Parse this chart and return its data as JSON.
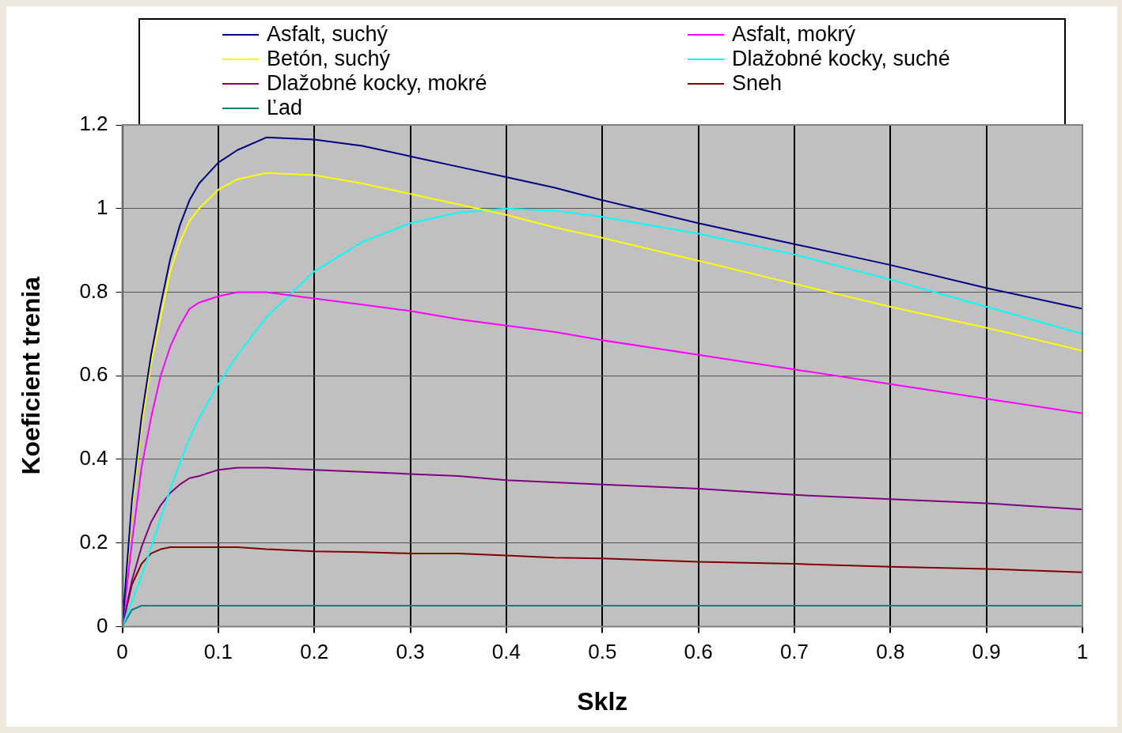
{
  "chart_data": {
    "type": "line",
    "xlabel": "Sklz",
    "ylabel": "Koeficient trenia",
    "x": [
      0,
      0.01,
      0.02,
      0.03,
      0.04,
      0.05,
      0.06,
      0.07,
      0.08,
      0.1,
      0.12,
      0.15,
      0.2,
      0.25,
      0.3,
      0.35,
      0.4,
      0.45,
      0.5,
      0.6,
      0.7,
      0.8,
      0.9,
      1.0
    ],
    "series": [
      {
        "name": "Asfalt, suchý",
        "color": "#000080",
        "values": [
          0,
          0.3,
          0.5,
          0.65,
          0.77,
          0.88,
          0.96,
          1.02,
          1.06,
          1.11,
          1.14,
          1.17,
          1.165,
          1.15,
          1.125,
          1.1,
          1.075,
          1.05,
          1.02,
          0.965,
          0.915,
          0.865,
          0.81,
          0.76
        ]
      },
      {
        "name": "Asfalt, mokrý",
        "color": "#ff00ff",
        "values": [
          0,
          0.2,
          0.38,
          0.5,
          0.6,
          0.67,
          0.72,
          0.76,
          0.775,
          0.79,
          0.8,
          0.8,
          0.785,
          0.77,
          0.755,
          0.735,
          0.72,
          0.705,
          0.685,
          0.65,
          0.615,
          0.58,
          0.545,
          0.51
        ]
      },
      {
        "name": "Betón, suchý",
        "color": "#ffff00",
        "values": [
          0,
          0.28,
          0.48,
          0.63,
          0.74,
          0.85,
          0.92,
          0.97,
          1.0,
          1.045,
          1.07,
          1.085,
          1.08,
          1.06,
          1.035,
          1.01,
          0.985,
          0.955,
          0.93,
          0.875,
          0.82,
          0.765,
          0.715,
          0.66
        ]
      },
      {
        "name": "Dlažobné kocky, suché",
        "color": "#00ffff",
        "values": [
          0,
          0.06,
          0.12,
          0.19,
          0.26,
          0.33,
          0.39,
          0.45,
          0.5,
          0.58,
          0.65,
          0.74,
          0.85,
          0.92,
          0.965,
          0.99,
          1.0,
          0.995,
          0.98,
          0.94,
          0.89,
          0.83,
          0.765,
          0.7
        ]
      },
      {
        "name": "Dlažobné kocky, mokré",
        "color": "#800080",
        "values": [
          0,
          0.11,
          0.19,
          0.25,
          0.29,
          0.32,
          0.34,
          0.355,
          0.36,
          0.375,
          0.38,
          0.38,
          0.375,
          0.37,
          0.365,
          0.36,
          0.35,
          0.345,
          0.34,
          0.33,
          0.315,
          0.305,
          0.295,
          0.28
        ]
      },
      {
        "name": "Sneh",
        "color": "#800000",
        "values": [
          0,
          0.1,
          0.15,
          0.175,
          0.185,
          0.19,
          0.19,
          0.19,
          0.19,
          0.19,
          0.19,
          0.185,
          0.18,
          0.178,
          0.175,
          0.175,
          0.17,
          0.165,
          0.163,
          0.155,
          0.15,
          0.143,
          0.138,
          0.13
        ]
      },
      {
        "name": "Ľad",
        "color": "#008080",
        "values": [
          0,
          0.04,
          0.05,
          0.05,
          0.05,
          0.05,
          0.05,
          0.05,
          0.05,
          0.05,
          0.05,
          0.05,
          0.05,
          0.05,
          0.05,
          0.05,
          0.05,
          0.05,
          0.05,
          0.05,
          0.05,
          0.05,
          0.05,
          0.05
        ]
      }
    ],
    "xlim": [
      0,
      1
    ],
    "xticks": [
      0,
      0.1,
      0.2,
      0.3,
      0.4,
      0.5,
      0.6,
      0.7,
      0.8,
      0.9,
      1
    ],
    "ylim": [
      0,
      1.2
    ],
    "yticks": [
      0,
      0.2,
      0.4,
      0.6,
      0.8,
      1,
      1.2
    ],
    "grid": true,
    "legend": "top",
    "marker": "none",
    "line_style": "solid"
  }
}
